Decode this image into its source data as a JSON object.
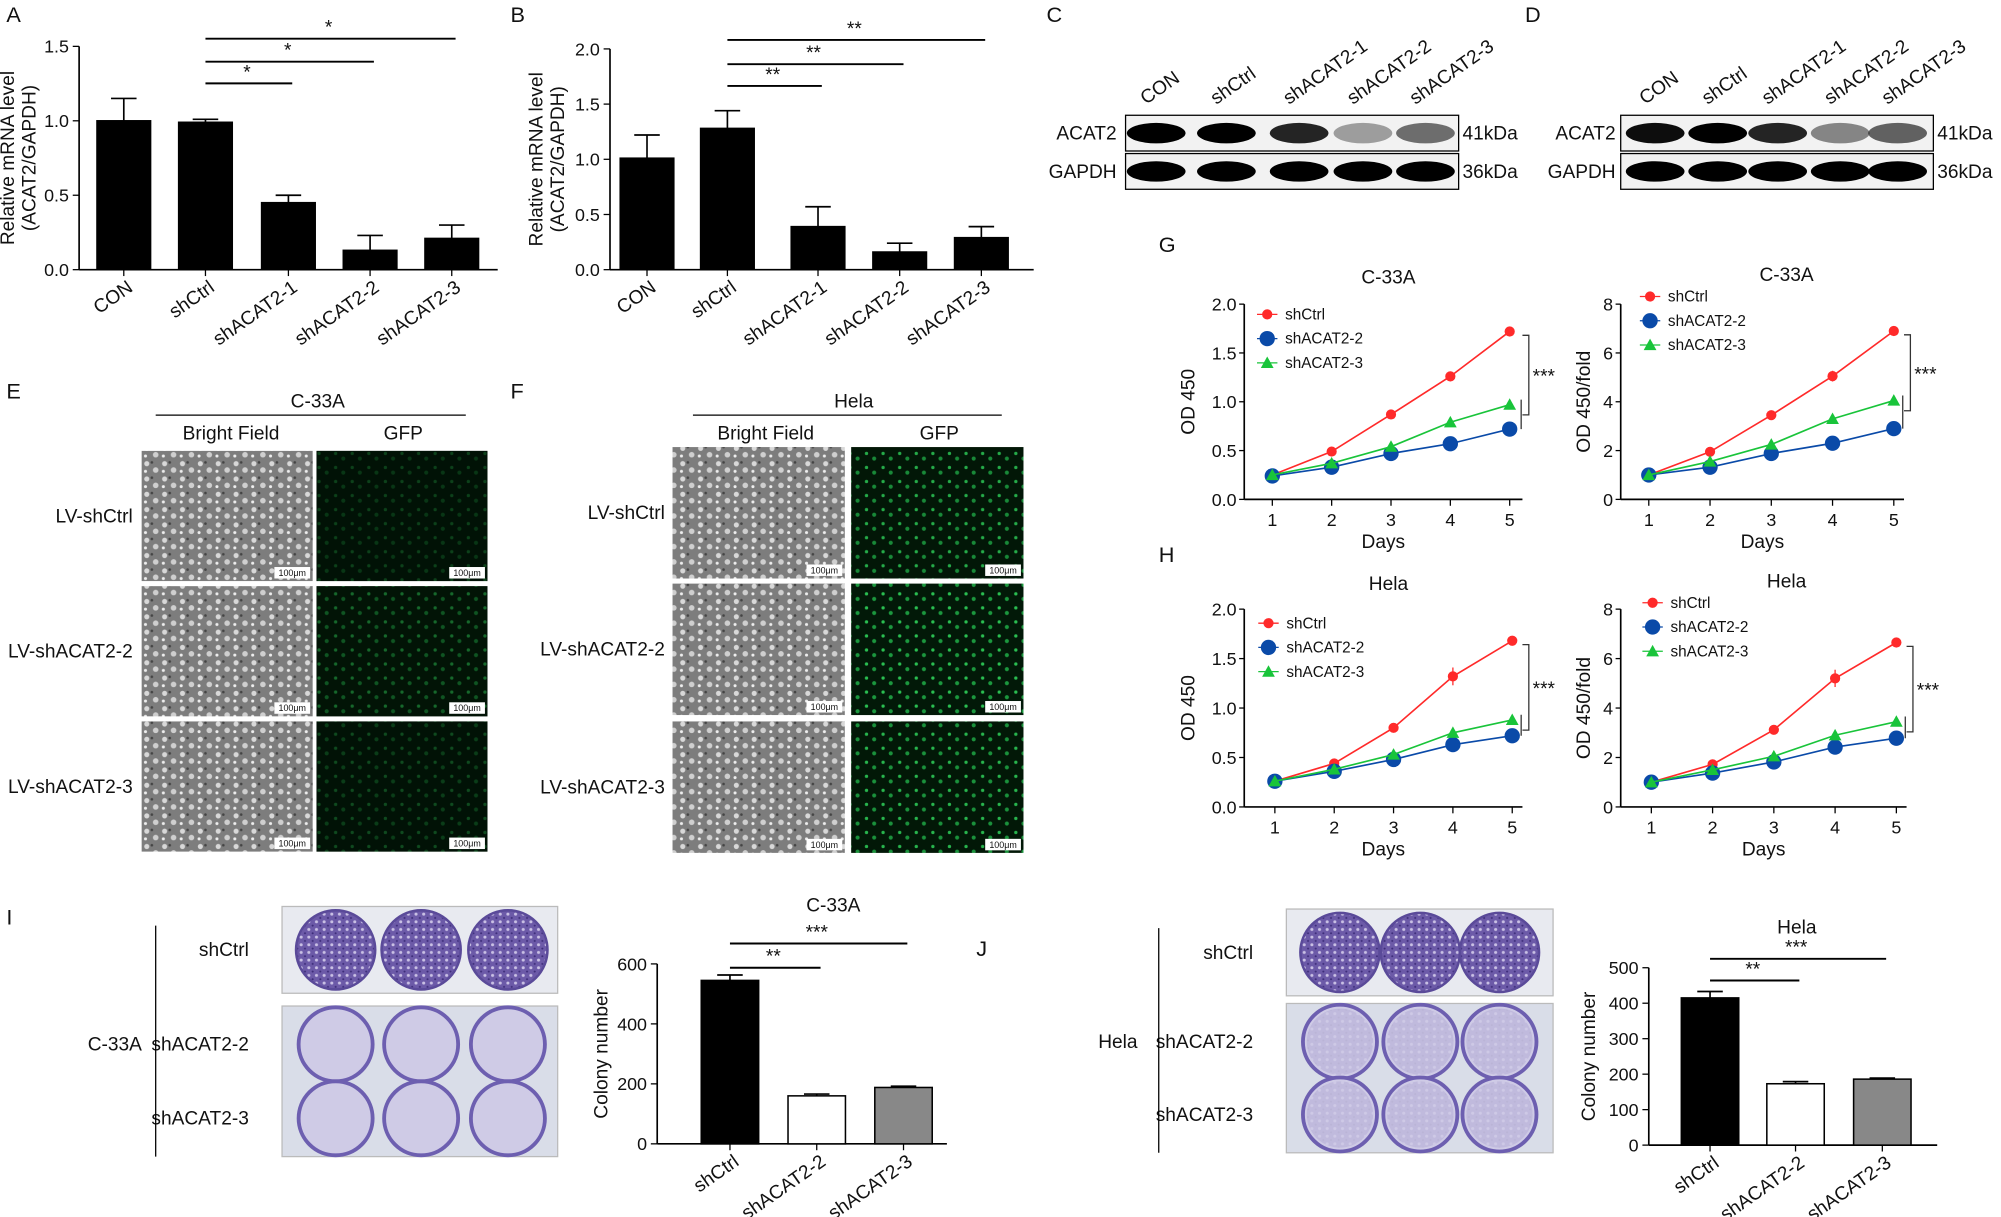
{
  "panels": {
    "A": "A",
    "B": "B",
    "C": "C",
    "D": "D",
    "E": "E",
    "F": "F",
    "G": "G",
    "H": "H",
    "I": "I",
    "J": "J"
  },
  "blots": [
    {
      "lanes": [
        "CON",
        "shCtrl",
        "shACAT2-1",
        "shACAT2-2",
        "shACAT2-3"
      ],
      "rows": [
        {
          "label": "ACAT2",
          "marker": "41kDa",
          "intensity": [
            1,
            1,
            0.85,
            0.35,
            0.55
          ]
        },
        {
          "label": "GAPDH",
          "marker": "36kDa",
          "intensity": [
            1,
            1,
            1,
            1,
            1
          ]
        }
      ]
    },
    {
      "lanes": [
        "CON",
        "shCtrl",
        "shACAT2-1",
        "shACAT2-2",
        "shACAT2-3"
      ],
      "rows": [
        {
          "label": "ACAT2",
          "marker": "41kDa",
          "intensity": [
            0.95,
            1,
            0.85,
            0.45,
            0.6
          ]
        },
        {
          "label": "GAPDH",
          "marker": "36kDa",
          "intensity": [
            1,
            1,
            1,
            1,
            1
          ]
        }
      ]
    }
  ],
  "microscopy": [
    {
      "cell": "C-33A",
      "columns": [
        "Bright Field",
        "GFP"
      ],
      "rows": [
        "LV-shCtrl",
        "LV-shACAT2-2",
        "LV-shACAT2-3"
      ],
      "scale_bar": "100μm",
      "gfp_level": [
        0.25,
        0.45,
        0.3
      ]
    },
    {
      "cell": "Hela",
      "columns": [
        "Bright Field",
        "GFP"
      ],
      "rows": [
        "LV-shCtrl",
        "LV-shACAT2-2",
        "LV-shACAT2-3"
      ],
      "scale_bar": "100μm",
      "gfp_level": [
        0.8,
        0.9,
        0.85
      ]
    }
  ],
  "colony": [
    {
      "cell": "C-33A",
      "rows": [
        "shCtrl",
        "shACAT2-2",
        "shACAT2-3"
      ]
    },
    {
      "cell": "Hela",
      "rows": [
        "shCtrl",
        "shACAT2-2",
        "shACAT2-3"
      ]
    }
  ],
  "chart_data": [
    {
      "type": "bar",
      "title": "",
      "ylabel": "Relative mRNA level (ACAT2/GAPDH)",
      "ylabel_lines": [
        "Relative mRNA level",
        "(ACAT2/GAPDH)"
      ],
      "xlabel": "",
      "categories": [
        "CON",
        "shCtrl",
        "shACAT2-1",
        "shACAT2-2",
        "shACAT2-3"
      ],
      "values": [
        1.0,
        0.99,
        0.45,
        0.13,
        0.21
      ],
      "errors": [
        0.15,
        0.02,
        0.05,
        0.1,
        0.09
      ],
      "bar_colors": [
        "#000000",
        "#000000",
        "#000000",
        "#000000",
        "#000000"
      ],
      "ylim": [
        0,
        1.5
      ],
      "yticks": [
        "0.0",
        "0.5",
        "1.0",
        "1.5"
      ],
      "ytick_values": [
        0,
        0.5,
        1.0,
        1.5
      ],
      "annotations": [
        {
          "from": "shCtrl",
          "to": "shACAT2-1",
          "label": "*"
        },
        {
          "from": "shCtrl",
          "to": "shACAT2-2",
          "label": "*"
        },
        {
          "from": "shCtrl",
          "to": "shACAT2-3",
          "label": "*"
        }
      ]
    },
    {
      "type": "bar",
      "title": "",
      "ylabel": "Relative mRNA level (ACAT2/GAPDH)",
      "ylabel_lines": [
        "Relative mRNA level",
        "(ACAT2/GAPDH)"
      ],
      "xlabel": "",
      "categories": [
        "CON",
        "shCtrl",
        "shACAT2-1",
        "shACAT2-2",
        "shACAT2-3"
      ],
      "values": [
        1.01,
        1.28,
        0.39,
        0.16,
        0.29
      ],
      "errors": [
        0.21,
        0.16,
        0.18,
        0.08,
        0.1
      ],
      "bar_colors": [
        "#000000",
        "#000000",
        "#000000",
        "#000000",
        "#000000"
      ],
      "ylim": [
        0,
        2.0
      ],
      "yticks": [
        "0.0",
        "0.5",
        "1.0",
        "1.5",
        "2.0"
      ],
      "ytick_values": [
        0,
        0.5,
        1.0,
        1.5,
        2.0
      ],
      "annotations": [
        {
          "from": "shCtrl",
          "to": "shACAT2-1",
          "label": "**"
        },
        {
          "from": "shCtrl",
          "to": "shACAT2-2",
          "label": "**"
        },
        {
          "from": "shCtrl",
          "to": "shACAT2-3",
          "label": "**"
        }
      ]
    },
    {
      "type": "line",
      "title": "C-33A",
      "ylabel": "OD 450",
      "xlabel": "Days",
      "x": [
        1,
        2,
        3,
        4,
        5
      ],
      "ylim": [
        0,
        2.0
      ],
      "yticks": [
        "0.0",
        "0.5",
        "1.0",
        "1.5",
        "2.0"
      ],
      "ytick_values": [
        0,
        0.5,
        1.0,
        1.5,
        2.0
      ],
      "xticks": [
        "1",
        "2",
        "3",
        "4",
        "5"
      ],
      "series": [
        {
          "name": "shCtrl",
          "color": "#ff2a2a",
          "marker": "circle",
          "values": [
            0.25,
            0.49,
            0.87,
            1.26,
            1.72
          ],
          "errors": [
            0,
            0.01,
            0.02,
            0.05,
            0.02
          ]
        },
        {
          "name": "shACAT2-2",
          "color": "#0a4aa8",
          "marker": "circle",
          "values": [
            0.24,
            0.33,
            0.47,
            0.57,
            0.72
          ],
          "errors": [
            0,
            0,
            0,
            0,
            0
          ]
        },
        {
          "name": "shACAT2-3",
          "color": "#19c43a",
          "marker": "triangle",
          "values": [
            0.25,
            0.37,
            0.54,
            0.79,
            0.97
          ],
          "errors": [
            0,
            0,
            0,
            0,
            0
          ]
        }
      ],
      "legend": "top-left",
      "annotation": "***"
    },
    {
      "type": "line",
      "title": "C-33A",
      "ylabel": "OD 450/fold",
      "xlabel": "Days",
      "x": [
        1,
        2,
        3,
        4,
        5
      ],
      "ylim": [
        0,
        8
      ],
      "yticks": [
        "0",
        "2",
        "4",
        "6",
        "8"
      ],
      "ytick_values": [
        0,
        2,
        4,
        6,
        8
      ],
      "xticks": [
        "1",
        "2",
        "3",
        "4",
        "5"
      ],
      "series": [
        {
          "name": "shCtrl",
          "color": "#ff2a2a",
          "marker": "circle",
          "values": [
            1.0,
            1.95,
            3.45,
            5.05,
            6.9
          ],
          "errors": [
            0,
            0.05,
            0.08,
            0.22,
            0.1
          ]
        },
        {
          "name": "shACAT2-2",
          "color": "#0a4aa8",
          "marker": "circle",
          "values": [
            1.0,
            1.32,
            1.88,
            2.3,
            2.9
          ],
          "errors": [
            0,
            0,
            0,
            0,
            0
          ]
        },
        {
          "name": "shACAT2-3",
          "color": "#19c43a",
          "marker": "triangle",
          "values": [
            1.0,
            1.55,
            2.25,
            3.3,
            4.05
          ],
          "errors": [
            0,
            0,
            0,
            0,
            0
          ]
        }
      ],
      "legend": "top-left",
      "annotation": "***"
    },
    {
      "type": "line",
      "title": "Hela",
      "ylabel": "OD 450",
      "xlabel": "Days",
      "x": [
        1,
        2,
        3,
        4,
        5
      ],
      "ylim": [
        0,
        2.0
      ],
      "yticks": [
        "0.0",
        "0.5",
        "1.0",
        "1.5",
        "2.0"
      ],
      "ytick_values": [
        0,
        0.5,
        1.0,
        1.5,
        2.0
      ],
      "xticks": [
        "1",
        "2",
        "3",
        "4",
        "5"
      ],
      "series": [
        {
          "name": "shCtrl",
          "color": "#ff2a2a",
          "marker": "circle",
          "values": [
            0.26,
            0.44,
            0.8,
            1.32,
            1.68
          ],
          "errors": [
            0,
            0.01,
            0.02,
            0.09,
            0.02
          ]
        },
        {
          "name": "shACAT2-2",
          "color": "#0a4aa8",
          "marker": "circle",
          "values": [
            0.26,
            0.36,
            0.48,
            0.63,
            0.72
          ],
          "errors": [
            0,
            0,
            0,
            0,
            0
          ]
        },
        {
          "name": "shACAT2-3",
          "color": "#19c43a",
          "marker": "triangle",
          "values": [
            0.26,
            0.38,
            0.53,
            0.75,
            0.88
          ],
          "errors": [
            0,
            0,
            0,
            0,
            0
          ]
        }
      ],
      "legend": "top-left",
      "annotation": "***"
    },
    {
      "type": "line",
      "title": "Hela",
      "ylabel": "OD 450/fold",
      "xlabel": "Days",
      "x": [
        1,
        2,
        3,
        4,
        5
      ],
      "ylim": [
        0,
        8
      ],
      "yticks": [
        "0",
        "2",
        "4",
        "6",
        "8"
      ],
      "ytick_values": [
        0,
        2,
        4,
        6,
        8
      ],
      "xticks": [
        "1",
        "2",
        "3",
        "4",
        "5"
      ],
      "series": [
        {
          "name": "shCtrl",
          "color": "#ff2a2a",
          "marker": "circle",
          "values": [
            1.0,
            1.72,
            3.12,
            5.2,
            6.65
          ],
          "errors": [
            0,
            0.05,
            0.08,
            0.35,
            0.1
          ]
        },
        {
          "name": "shACAT2-2",
          "color": "#0a4aa8",
          "marker": "circle",
          "values": [
            1.0,
            1.37,
            1.82,
            2.42,
            2.78
          ],
          "errors": [
            0,
            0,
            0,
            0,
            0
          ]
        },
        {
          "name": "shACAT2-3",
          "color": "#19c43a",
          "marker": "triangle",
          "values": [
            1.0,
            1.5,
            2.05,
            2.9,
            3.45
          ],
          "errors": [
            0,
            0,
            0,
            0,
            0
          ]
        }
      ],
      "legend": "top-left",
      "annotation": "***"
    },
    {
      "type": "bar",
      "title": "C-33A",
      "ylabel": "Colony number",
      "ylabel_lines": [
        "Colony number"
      ],
      "xlabel": "",
      "categories": [
        "shCtrl",
        "shACAT2-2",
        "shACAT2-3"
      ],
      "values": [
        545,
        160,
        188
      ],
      "errors": [
        18,
        6,
        4
      ],
      "bar_colors": [
        "#000000",
        "#ffffff",
        "#888888"
      ],
      "ylim": [
        0,
        600
      ],
      "yticks": [
        "0",
        "200",
        "400",
        "600"
      ],
      "ytick_values": [
        0,
        200,
        400,
        600
      ],
      "annotations": [
        {
          "from": "shCtrl",
          "to": "shACAT2-2",
          "label": "**"
        },
        {
          "from": "shCtrl",
          "to": "shACAT2-3",
          "label": "***"
        }
      ]
    },
    {
      "type": "bar",
      "title": "Hela",
      "ylabel": "Colony number",
      "ylabel_lines": [
        "Colony number"
      ],
      "xlabel": "",
      "categories": [
        "shCtrl",
        "shACAT2-2",
        "shACAT2-3"
      ],
      "values": [
        415,
        173,
        186
      ],
      "errors": [
        18,
        6,
        3
      ],
      "bar_colors": [
        "#000000",
        "#ffffff",
        "#888888"
      ],
      "ylim": [
        0,
        500
      ],
      "yticks": [
        "0",
        "100",
        "200",
        "300",
        "400",
        "500"
      ],
      "ytick_values": [
        0,
        100,
        200,
        300,
        400,
        500
      ],
      "annotations": [
        {
          "from": "shCtrl",
          "to": "shACAT2-2",
          "label": "**"
        },
        {
          "from": "shCtrl",
          "to": "shACAT2-3",
          "label": "***"
        }
      ]
    }
  ]
}
